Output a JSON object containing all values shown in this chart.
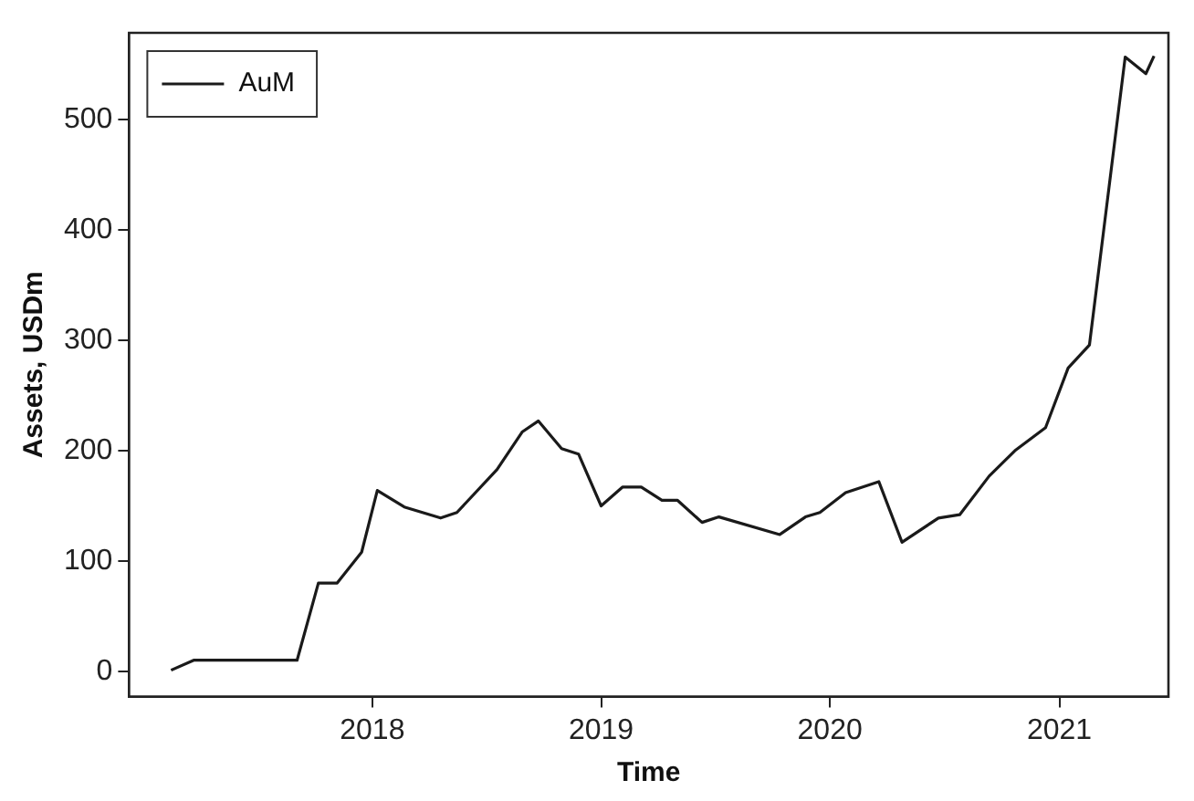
{
  "chart_data": {
    "type": "line",
    "xlabel": "Time",
    "ylabel": "Assets, USDm",
    "x": [
      "2017-02-14",
      "2017-03-22",
      "2017-09-03",
      "2017-10-07",
      "2017-11-06",
      "2017-12-15",
      "2018-01-09",
      "2018-02-21",
      "2018-04-20",
      "2018-05-16",
      "2018-07-19",
      "2018-08-28",
      "2018-09-23",
      "2018-10-30",
      "2018-11-26",
      "2019-01-01",
      "2019-02-04",
      "2019-03-06",
      "2019-04-08",
      "2019-05-03",
      "2019-06-11",
      "2019-07-08",
      "2019-10-13",
      "2019-11-23",
      "2019-12-16",
      "2020-01-26",
      "2020-03-19",
      "2020-04-25",
      "2020-06-22",
      "2020-07-26",
      "2020-09-11",
      "2020-10-22",
      "2020-12-10",
      "2021-01-15",
      "2021-02-18",
      "2021-04-16",
      "2021-05-19",
      "2021-06-01"
    ],
    "series": [
      {
        "name": "AuM",
        "color": "#1a1a1a",
        "values": [
          1,
          10,
          10,
          80,
          80,
          108,
          164,
          149,
          139,
          144,
          183,
          217,
          227,
          202,
          197,
          150,
          167,
          167,
          155,
          155,
          135,
          140,
          124,
          140,
          144,
          162,
          172,
          117,
          139,
          142,
          177,
          200,
          221,
          275,
          296,
          557,
          542,
          558
        ]
      }
    ],
    "xlim": [
      "2016-12-09",
      "2021-06-24"
    ],
    "xticks": [
      {
        "value": "2018",
        "label": "2018"
      },
      {
        "value": "2019",
        "label": "2019"
      },
      {
        "value": "2020",
        "label": "2020"
      },
      {
        "value": "2021",
        "label": "2021"
      }
    ],
    "ylim": [
      -23,
      579
    ],
    "yticks": [
      0,
      100,
      200,
      300,
      400,
      500
    ],
    "grid": false,
    "legend": "top left",
    "marker": "none",
    "line_style": "solid"
  }
}
